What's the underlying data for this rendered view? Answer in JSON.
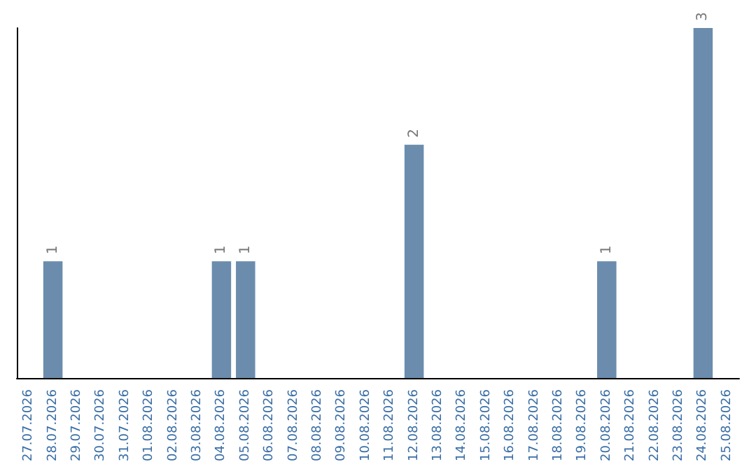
{
  "chart_data": {
    "type": "bar",
    "categories": [
      "27.07.2026",
      "28.07.2026",
      "29.07.2026",
      "30.07.2026",
      "31.07.2026",
      "01.08.2026",
      "02.08.2026",
      "03.08.2026",
      "04.08.2026",
      "05.08.2026",
      "06.08.2026",
      "07.08.2026",
      "08.08.2026",
      "09.08.2026",
      "10.08.2026",
      "11.08.2026",
      "12.08.2026",
      "13.08.2026",
      "14.08.2026",
      "15.08.2026",
      "16.08.2026",
      "17.08.2026",
      "18.08.2026",
      "19.08.2026",
      "20.08.2026",
      "21.08.2026",
      "22.08.2026",
      "23.08.2026",
      "24.08.2026",
      "25.08.2026"
    ],
    "values": [
      0,
      1,
      0,
      0,
      0,
      0,
      0,
      0,
      1,
      1,
      0,
      0,
      0,
      0,
      0,
      0,
      2,
      0,
      0,
      0,
      0,
      0,
      0,
      0,
      1,
      0,
      0,
      0,
      3,
      0
    ],
    "value_labels": [
      null,
      "1",
      null,
      null,
      null,
      null,
      null,
      null,
      "1",
      "1",
      null,
      null,
      null,
      null,
      null,
      null,
      "2",
      null,
      null,
      null,
      null,
      null,
      null,
      null,
      "1",
      null,
      null,
      null,
      "3",
      null
    ],
    "color": "#6b8cad",
    "tick_labels": "x",
    "grid": false
  }
}
